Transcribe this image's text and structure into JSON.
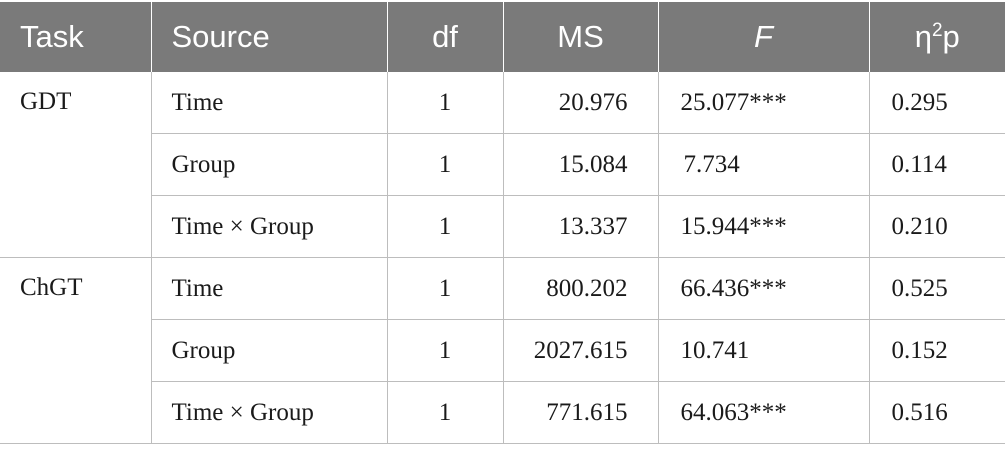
{
  "table": {
    "headers": {
      "task": "Task",
      "source": "Source",
      "df": "df",
      "ms": "MS",
      "f": "F",
      "eta_base": "η",
      "eta_sup": "2",
      "eta_suffix": "p"
    },
    "groups": [
      {
        "task": "GDT",
        "rows": [
          {
            "source": "Time",
            "df": "1",
            "ms": "20.976",
            "f": "25.077***",
            "eta": "0.295"
          },
          {
            "source": "Group",
            "df": "1",
            "ms": "15.084",
            "f": "7.734",
            "eta": "0.114"
          },
          {
            "source": "Time × Group",
            "df": "1",
            "ms": "13.337",
            "f": "15.944***",
            "eta": "0.210"
          }
        ]
      },
      {
        "task": "ChGT",
        "rows": [
          {
            "source": "Time",
            "df": "1",
            "ms": "800.202",
            "f": "66.436***",
            "eta": "0.525"
          },
          {
            "source": "Group",
            "df": "1",
            "ms": "2027.615",
            "f": "10.741",
            "eta": "0.152"
          },
          {
            "source": "Time × Group",
            "df": "1",
            "ms": "771.615",
            "f": "64.063***",
            "eta": "0.516"
          }
        ]
      }
    ]
  }
}
